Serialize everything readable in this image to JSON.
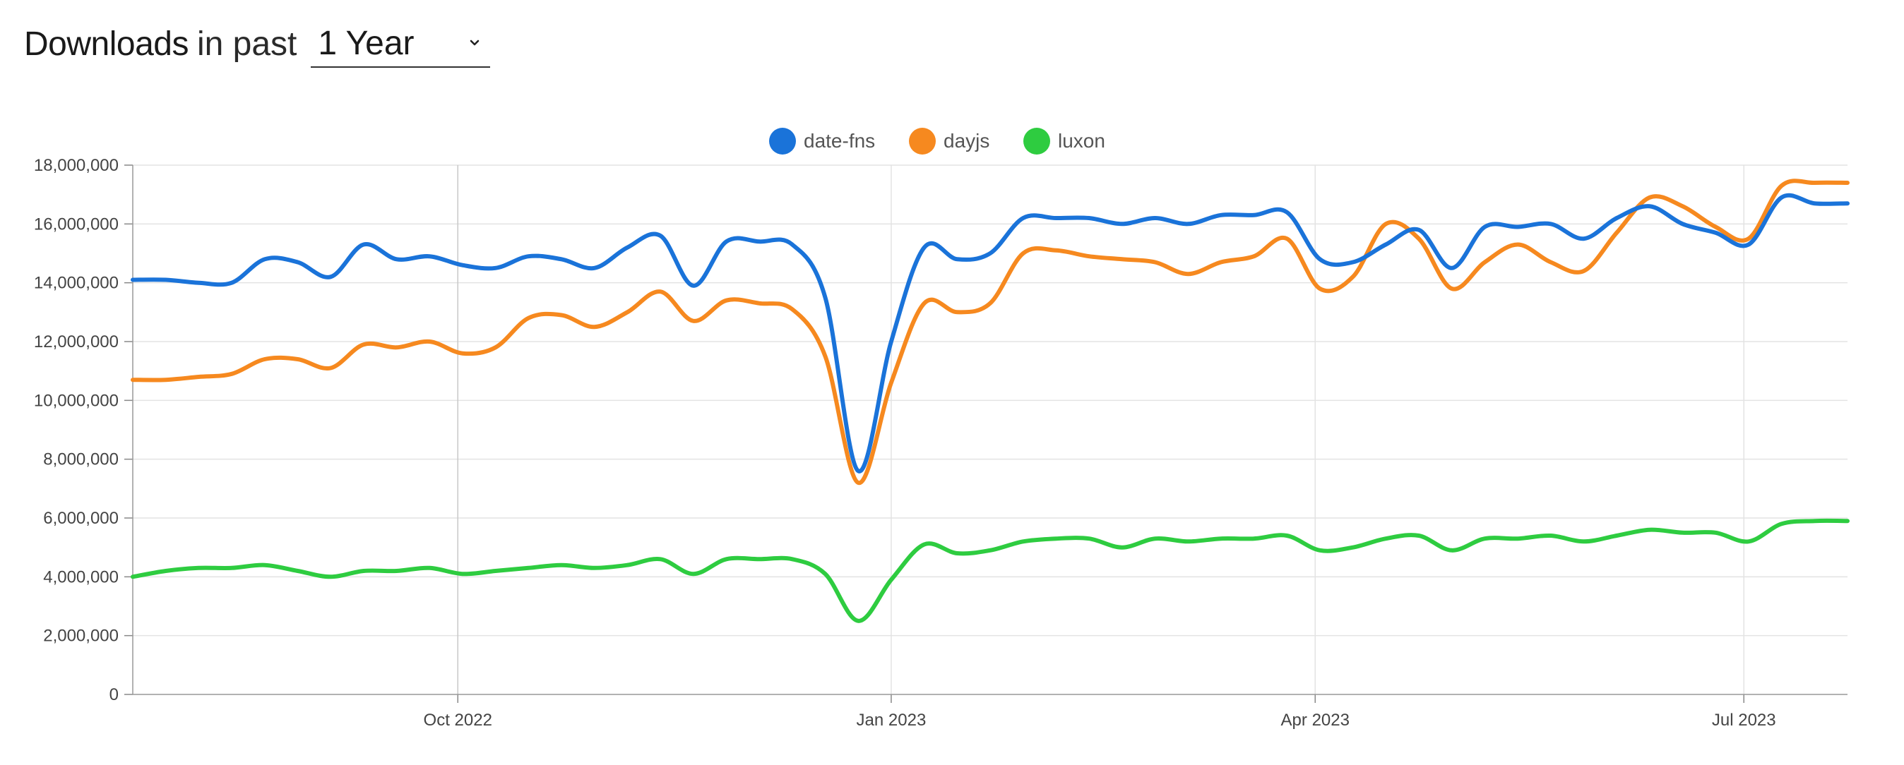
{
  "header": {
    "title": "Downloads",
    "subtitle": "in past",
    "range_value": "1 Year"
  },
  "chart_data": {
    "type": "line",
    "title": "",
    "xlabel": "",
    "ylabel": "",
    "ylim": [
      0,
      18000000
    ],
    "yticks": [
      0,
      2000000,
      4000000,
      6000000,
      8000000,
      10000000,
      12000000,
      14000000,
      16000000,
      18000000
    ],
    "ytick_labels": [
      "0",
      "2,000,000",
      "4,000,000",
      "6,000,000",
      "8,000,000",
      "10,000,000",
      "12,000,000",
      "14,000,000",
      "16,000,000",
      "18,000,000"
    ],
    "xlim": [
      "2022-07-24",
      "2023-07-23"
    ],
    "xticks": [
      {
        "date": "2022-10-01",
        "label": "Oct 2022"
      },
      {
        "date": "2023-01-01",
        "label": "Jan 2023"
      },
      {
        "date": "2023-04-01",
        "label": "Apr 2023"
      },
      {
        "date": "2023-07-01",
        "label": "Jul 2023"
      }
    ],
    "grid": true,
    "legend_position": "top-center",
    "x": [
      "2022-07-24",
      "2022-07-31",
      "2022-08-07",
      "2022-08-14",
      "2022-08-21",
      "2022-08-28",
      "2022-09-04",
      "2022-09-11",
      "2022-09-18",
      "2022-09-25",
      "2022-10-02",
      "2022-10-09",
      "2022-10-16",
      "2022-10-23",
      "2022-10-30",
      "2022-11-06",
      "2022-11-13",
      "2022-11-20",
      "2022-11-27",
      "2022-12-04",
      "2022-12-11",
      "2022-12-18",
      "2022-12-25",
      "2023-01-01",
      "2023-01-08",
      "2023-01-15",
      "2023-01-22",
      "2023-01-29",
      "2023-02-05",
      "2023-02-12",
      "2023-02-19",
      "2023-02-26",
      "2023-03-05",
      "2023-03-12",
      "2023-03-19",
      "2023-03-26",
      "2023-04-02",
      "2023-04-09",
      "2023-04-16",
      "2023-04-23",
      "2023-04-30",
      "2023-05-07",
      "2023-05-14",
      "2023-05-21",
      "2023-05-28",
      "2023-06-04",
      "2023-06-11",
      "2023-06-18",
      "2023-06-25",
      "2023-07-02",
      "2023-07-09",
      "2023-07-16",
      "2023-07-23"
    ],
    "series": [
      {
        "name": "date-fns",
        "color": "#1a73d9",
        "values": [
          14100000,
          14100000,
          14000000,
          14000000,
          14800000,
          14700000,
          14200000,
          15300000,
          14800000,
          14900000,
          14600000,
          14500000,
          14900000,
          14800000,
          14500000,
          15200000,
          15600000,
          13900000,
          15400000,
          15400000,
          15300000,
          13500000,
          7600000,
          12000000,
          15200000,
          14800000,
          15000000,
          16200000,
          16200000,
          16200000,
          16000000,
          16200000,
          16000000,
          16300000,
          16300000,
          16400000,
          14800000,
          14700000,
          15300000,
          15800000,
          14500000,
          15900000,
          15900000,
          16000000,
          15500000,
          16200000,
          16600000,
          16000000,
          15700000,
          15300000,
          16900000,
          16700000,
          16700000
        ]
      },
      {
        "name": "dayjs",
        "color": "#f6891f",
        "values": [
          10700000,
          10700000,
          10800000,
          10900000,
          11400000,
          11400000,
          11100000,
          11900000,
          11800000,
          12000000,
          11600000,
          11800000,
          12800000,
          12900000,
          12500000,
          13000000,
          13700000,
          12700000,
          13400000,
          13300000,
          13100000,
          11500000,
          7200000,
          10600000,
          13300000,
          13000000,
          13300000,
          15000000,
          15100000,
          14900000,
          14800000,
          14700000,
          14300000,
          14700000,
          14900000,
          15500000,
          13800000,
          14200000,
          16000000,
          15500000,
          13800000,
          14700000,
          15300000,
          14700000,
          14400000,
          15700000,
          16900000,
          16600000,
          15900000,
          15500000,
          17300000,
          17400000,
          17400000
        ]
      },
      {
        "name": "luxon",
        "color": "#2ecc40",
        "values": [
          4000000,
          4200000,
          4300000,
          4300000,
          4400000,
          4200000,
          4000000,
          4200000,
          4200000,
          4300000,
          4100000,
          4200000,
          4300000,
          4400000,
          4300000,
          4400000,
          4600000,
          4100000,
          4600000,
          4600000,
          4600000,
          4100000,
          2500000,
          3900000,
          5100000,
          4800000,
          4900000,
          5200000,
          5300000,
          5300000,
          5000000,
          5300000,
          5200000,
          5300000,
          5300000,
          5400000,
          4900000,
          5000000,
          5300000,
          5400000,
          4900000,
          5300000,
          5300000,
          5400000,
          5200000,
          5400000,
          5600000,
          5500000,
          5500000,
          5200000,
          5800000,
          5900000,
          5900000
        ]
      }
    ]
  }
}
